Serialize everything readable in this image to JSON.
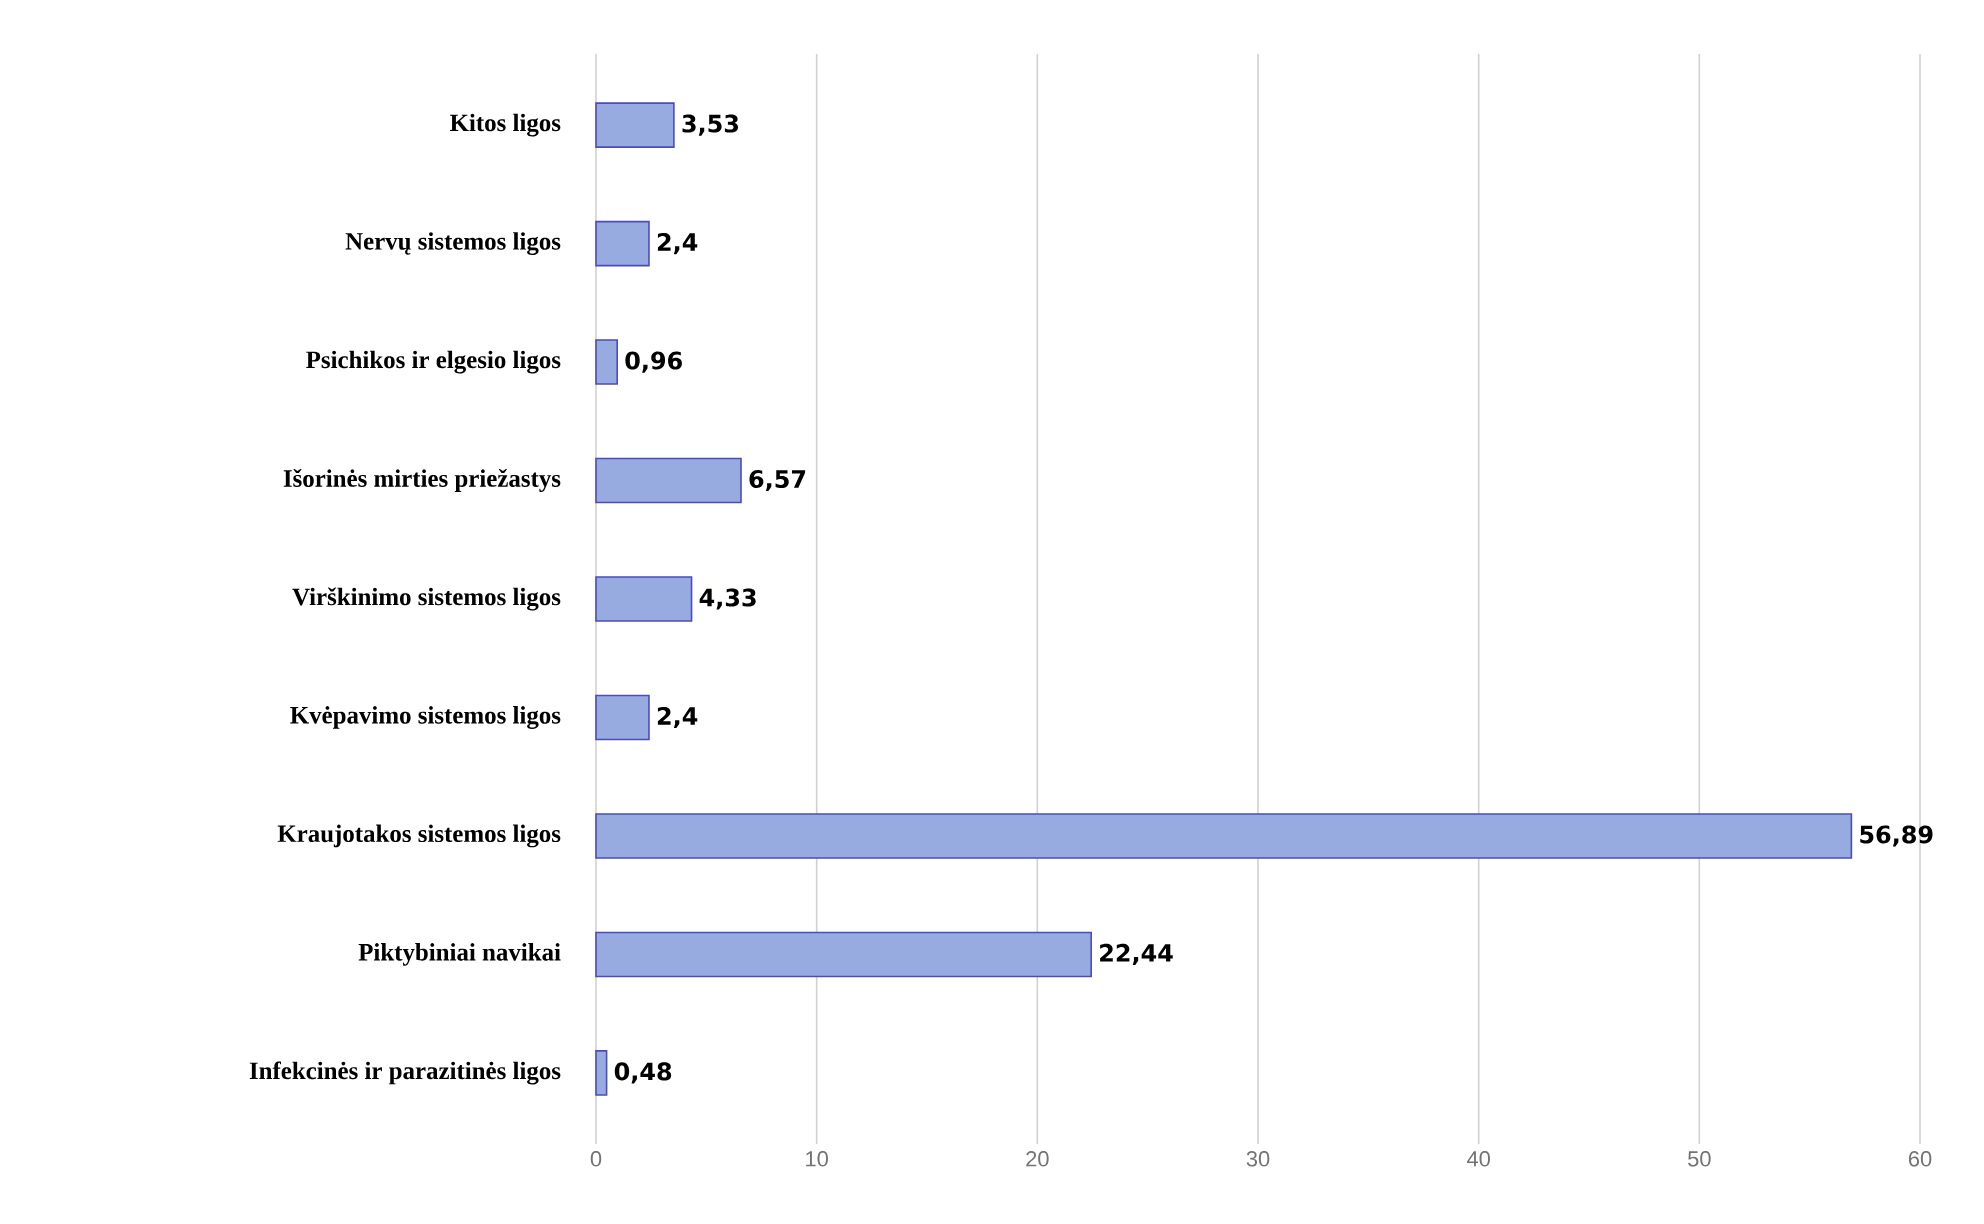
{
  "chart_data": {
    "type": "bar",
    "orientation": "horizontal",
    "categories": [
      "Kitos ligos",
      "Nervų sistemos ligos",
      "Psichikos ir elgesio ligos",
      "Išorinės mirties priežastys",
      "Virškinimo sistemos ligos",
      "Kvėpavimo sistemos ligos",
      "Kraujotakos sistemos ligos",
      "Piktybiniai navikai",
      "Infekcinės ir parazitinės ligos"
    ],
    "values": [
      3.53,
      2.4,
      0.96,
      6.57,
      4.33,
      2.4,
      56.89,
      22.44,
      0.48
    ],
    "value_labels": [
      "3,53",
      "2,4",
      "0,96",
      "6,57",
      "4,33",
      "2,4",
      "56,89",
      "22,44",
      "0,48"
    ],
    "color": "#97abe0",
    "xlim": [
      0,
      60
    ],
    "xticks": [
      0,
      10,
      20,
      30,
      40,
      50,
      60
    ],
    "grid": "x"
  }
}
